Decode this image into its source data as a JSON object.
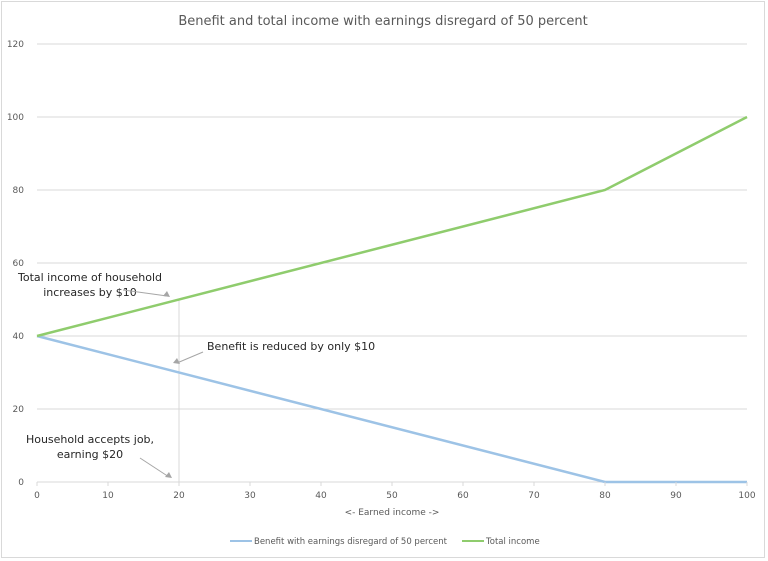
{
  "chart_data": {
    "type": "line",
    "title": "Benefit and total income with earnings disregard of 50 percent",
    "xlabel": "<- Earned income ->",
    "ylabel": "",
    "xlim": [
      0,
      100
    ],
    "ylim": [
      0,
      120
    ],
    "xticks": [
      0,
      10,
      20,
      30,
      40,
      50,
      60,
      70,
      80,
      90,
      100
    ],
    "yticks": [
      0,
      20,
      40,
      60,
      80,
      100,
      120
    ],
    "grid": "horizontal",
    "legend": "bottom",
    "series": [
      {
        "name": "Benefit with earnings disregard of 50 percent",
        "color": "#9dc3e6",
        "x": [
          0,
          80,
          100
        ],
        "y": [
          40,
          0,
          0
        ]
      },
      {
        "name": "Total income",
        "color": "#8fcc6d",
        "x": [
          0,
          80,
          100
        ],
        "y": [
          40,
          80,
          100
        ]
      }
    ],
    "annotations": [
      {
        "lines": [
          "Total income of household",
          "increases by $10"
        ],
        "x": 20,
        "y": 50
      },
      {
        "lines": [
          "Benefit is reduced by only $10"
        ],
        "x": 20,
        "y": 30
      },
      {
        "lines": [
          "Household accepts job,",
          "earning $20"
        ],
        "x": 20,
        "y": 0
      }
    ],
    "reference_line_x": 20
  }
}
